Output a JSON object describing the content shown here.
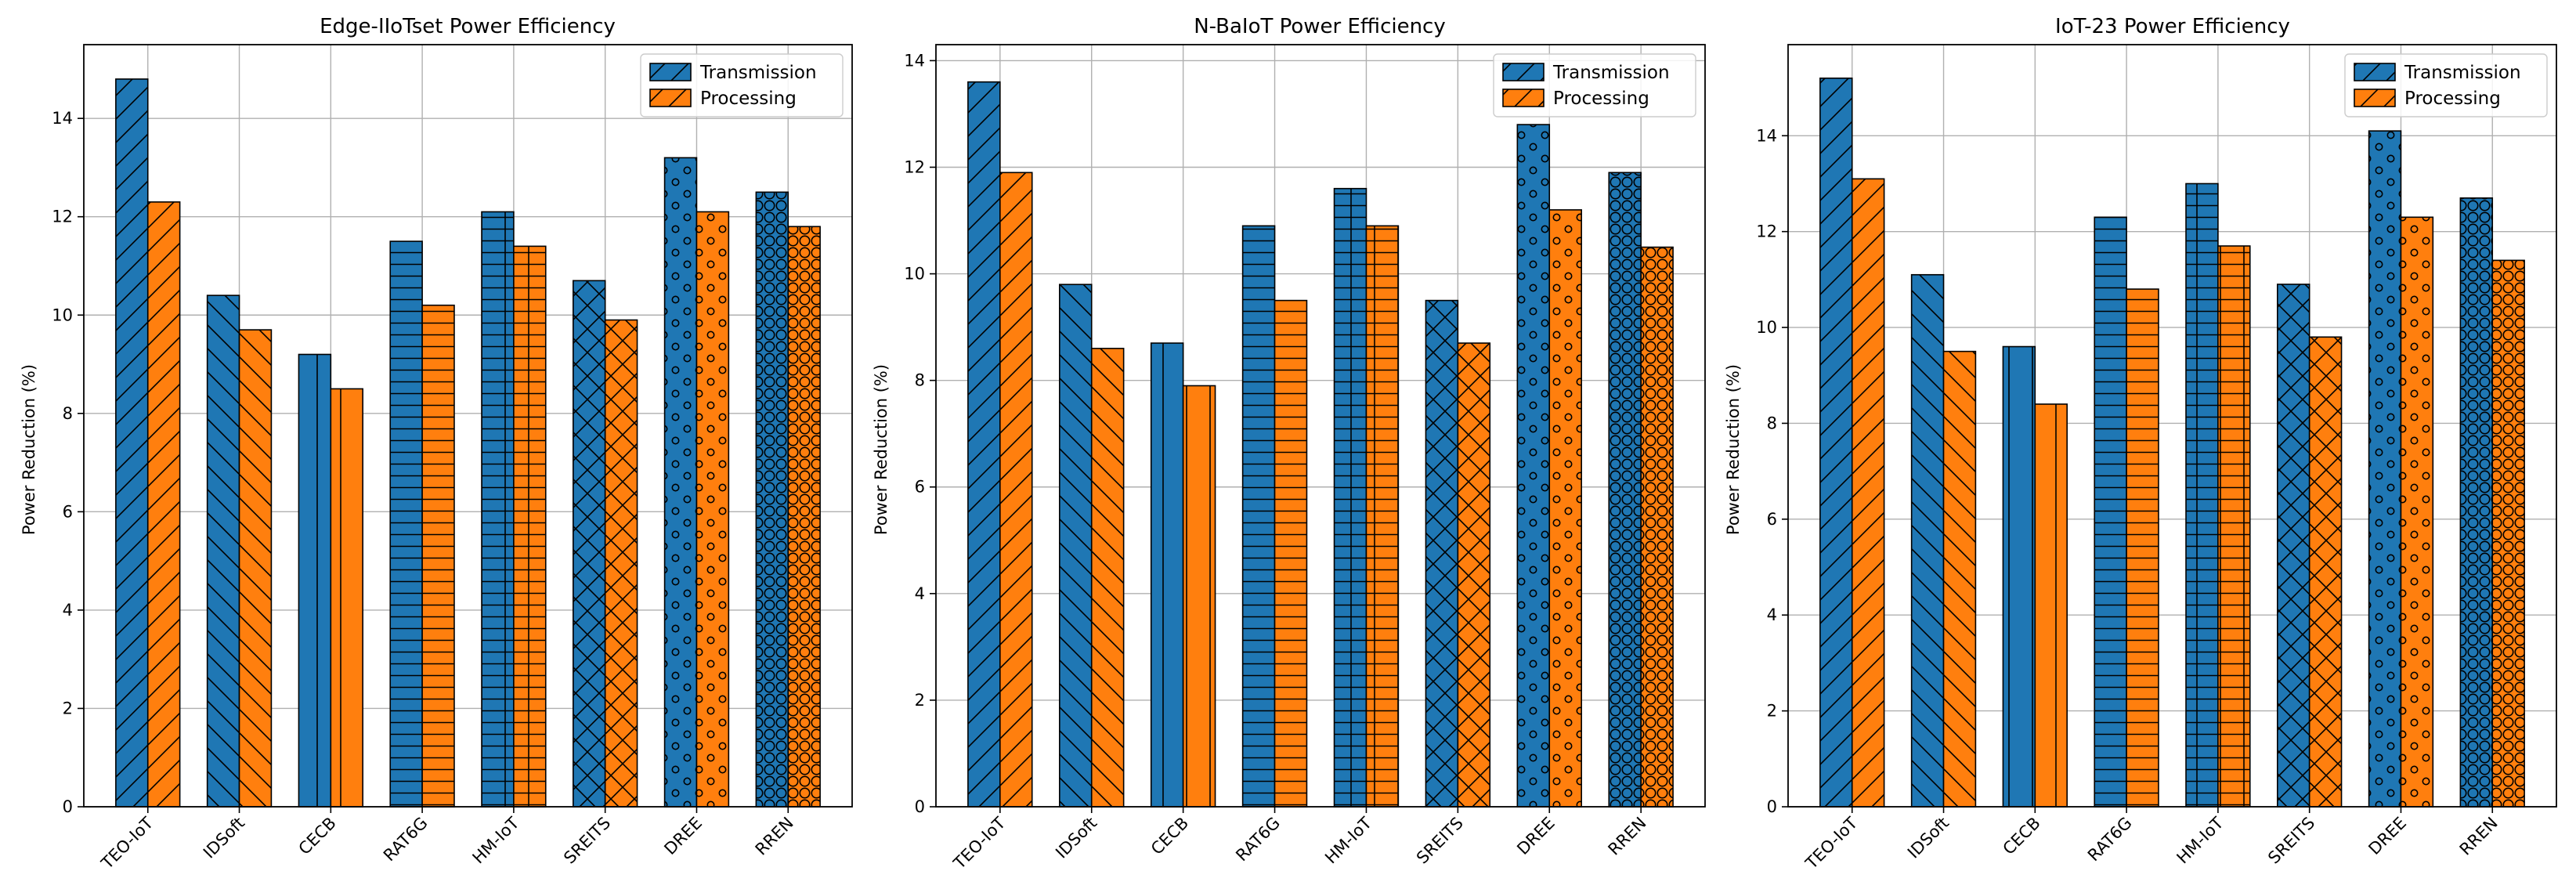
{
  "figure": {
    "colors": {
      "transmission": "#1f77b4",
      "processing": "#ff7f0e"
    }
  },
  "chart_data": [
    {
      "type": "bar",
      "title": "Edge-IIoTset Power Efficiency",
      "ylabel": "Power Reduction (%)",
      "xlabel": "",
      "categories": [
        "TEO-IoT",
        "IDSoft",
        "CECB",
        "RAT6G",
        "HM-IoT",
        "SREITS",
        "DREE",
        "RREN"
      ],
      "hatches": [
        "/",
        "\\",
        "|",
        "-",
        "+",
        "x",
        "o",
        "O"
      ],
      "series": [
        {
          "name": "Transmission",
          "values": [
            14.8,
            10.4,
            9.2,
            11.5,
            12.1,
            10.7,
            13.2,
            12.5
          ]
        },
        {
          "name": "Processing",
          "values": [
            12.3,
            9.7,
            8.5,
            10.2,
            11.4,
            9.9,
            12.1,
            11.8
          ]
        }
      ],
      "ylim": [
        0,
        15.5
      ],
      "yticks": [
        "0",
        "2",
        "4",
        "6",
        "8",
        "10",
        "12",
        "14"
      ],
      "grid": true,
      "legend": "top-right"
    },
    {
      "type": "bar",
      "title": "N-BaIoT Power Efficiency",
      "ylabel": "Power Reduction (%)",
      "xlabel": "",
      "categories": [
        "TEO-IoT",
        "IDSoft",
        "CECB",
        "RAT6G",
        "HM-IoT",
        "SREITS",
        "DREE",
        "RREN"
      ],
      "hatches": [
        "/",
        "\\",
        "|",
        "-",
        "+",
        "x",
        "o",
        "O"
      ],
      "series": [
        {
          "name": "Transmission",
          "values": [
            13.6,
            9.8,
            8.7,
            10.9,
            11.6,
            9.5,
            12.8,
            11.9
          ]
        },
        {
          "name": "Processing",
          "values": [
            11.9,
            8.6,
            7.9,
            9.5,
            10.9,
            8.7,
            11.2,
            10.5
          ]
        }
      ],
      "ylim": [
        0,
        14.3
      ],
      "yticks": [
        "0",
        "2",
        "4",
        "6",
        "8",
        "10",
        "12",
        "14"
      ],
      "grid": true,
      "legend": "top-right"
    },
    {
      "type": "bar",
      "title": "IoT-23 Power Efficiency",
      "ylabel": "Power Reduction (%)",
      "xlabel": "",
      "categories": [
        "TEO-IoT",
        "IDSoft",
        "CECB",
        "RAT6G",
        "HM-IoT",
        "SREITS",
        "DREE",
        "RREN"
      ],
      "hatches": [
        "/",
        "\\",
        "|",
        "-",
        "+",
        "x",
        "o",
        "O"
      ],
      "series": [
        {
          "name": "Transmission",
          "values": [
            15.2,
            11.1,
            9.6,
            12.3,
            13.0,
            10.9,
            14.1,
            12.7
          ]
        },
        {
          "name": "Processing",
          "values": [
            13.1,
            9.5,
            8.4,
            10.8,
            11.7,
            9.8,
            12.3,
            11.4
          ]
        }
      ],
      "ylim": [
        0,
        15.9
      ],
      "yticks": [
        "0",
        "2",
        "4",
        "6",
        "8",
        "10",
        "12",
        "14"
      ],
      "grid": true,
      "legend": "top-right"
    }
  ]
}
